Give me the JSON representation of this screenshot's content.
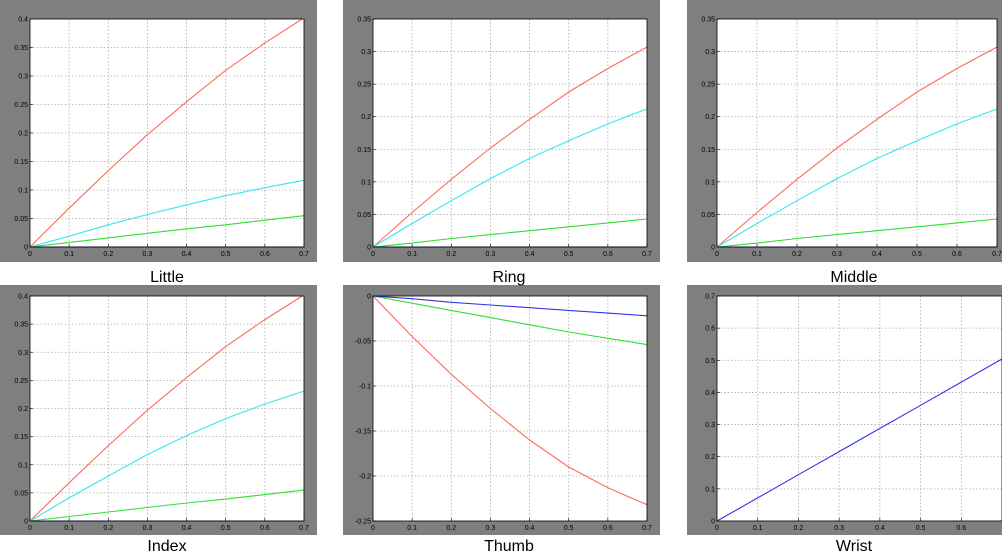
{
  "chart_data": [
    {
      "type": "line",
      "title": "Little",
      "xlim": [
        0,
        0.7
      ],
      "ylim": [
        0,
        0.4
      ],
      "x_ticks": [
        "0",
        "0.1",
        "0.2",
        "0.3",
        "0.4",
        "0.5",
        "0.6",
        "0.7"
      ],
      "y_ticks": [
        "0",
        "0.05",
        "0.1",
        "0.15",
        "0.2",
        "0.25",
        "0.3",
        "0.35",
        "0.4"
      ],
      "grid": true,
      "x": [
        0,
        0.1,
        0.2,
        0.3,
        0.4,
        0.5,
        0.6,
        0.7
      ],
      "series": [
        {
          "color": "#ff6a5c",
          "values": [
            0,
            0.068,
            0.134,
            0.197,
            0.255,
            0.31,
            0.358,
            0.402
          ]
        },
        {
          "color": "#33e8ee",
          "values": [
            0,
            0.019,
            0.039,
            0.057,
            0.074,
            0.09,
            0.104,
            0.117
          ]
        },
        {
          "color": "#33dd33",
          "values": [
            0,
            0.008,
            0.016,
            0.024,
            0.032,
            0.039,
            0.047,
            0.055
          ]
        },
        {
          "color": "#3333ee",
          "values": [
            0,
            0,
            0,
            0,
            0,
            0,
            0,
            0
          ]
        }
      ]
    },
    {
      "type": "line",
      "title": "Ring",
      "xlim": [
        0,
        0.7
      ],
      "ylim": [
        0,
        0.35
      ],
      "x_ticks": [
        "0",
        "0.1",
        "0.2",
        "0.3",
        "0.4",
        "0.5",
        "0.6",
        "0.7"
      ],
      "y_ticks": [
        "0",
        "0.05",
        "0.1",
        "0.15",
        "0.2",
        "0.25",
        "0.3",
        "0.35"
      ],
      "grid": true,
      "x": [
        0,
        0.1,
        0.2,
        0.3,
        0.4,
        0.5,
        0.6,
        0.7
      ],
      "series": [
        {
          "color": "#ff6a5c",
          "values": [
            0,
            0.053,
            0.104,
            0.152,
            0.196,
            0.238,
            0.274,
            0.307
          ]
        },
        {
          "color": "#33e8ee",
          "values": [
            0,
            0.036,
            0.071,
            0.105,
            0.136,
            0.163,
            0.189,
            0.212
          ]
        },
        {
          "color": "#33dd33",
          "values": [
            0,
            0.006,
            0.013,
            0.019,
            0.025,
            0.031,
            0.037,
            0.043
          ]
        },
        {
          "color": "#3333ee",
          "values": [
            0,
            0,
            0,
            0,
            0,
            0,
            0,
            0
          ]
        }
      ]
    },
    {
      "type": "line",
      "title": "Middle",
      "xlim": [
        0,
        0.7
      ],
      "ylim": [
        0,
        0.35
      ],
      "x_ticks": [
        "0",
        "0.1",
        "0.2",
        "0.3",
        "0.4",
        "0.5",
        "0.6",
        "0.7"
      ],
      "y_ticks": [
        "0",
        "0.05",
        "0.1",
        "0.15",
        "0.2",
        "0.25",
        "0.3",
        "0.35"
      ],
      "grid": true,
      "x": [
        0,
        0.1,
        0.2,
        0.3,
        0.4,
        0.5,
        0.6,
        0.7
      ],
      "series": [
        {
          "color": "#ff6a5c",
          "values": [
            0,
            0.053,
            0.104,
            0.152,
            0.196,
            0.238,
            0.274,
            0.307
          ]
        },
        {
          "color": "#33e8ee",
          "values": [
            0,
            0.036,
            0.071,
            0.105,
            0.136,
            0.163,
            0.189,
            0.212
          ]
        },
        {
          "color": "#33dd33",
          "values": [
            0,
            0.006,
            0.013,
            0.019,
            0.025,
            0.031,
            0.037,
            0.043
          ]
        },
        {
          "color": "#3333ee",
          "values": [
            0,
            0,
            0,
            0,
            0,
            0,
            0,
            0
          ]
        }
      ]
    },
    {
      "type": "line",
      "title": "Index",
      "xlim": [
        0,
        0.7
      ],
      "ylim": [
        0,
        0.4
      ],
      "x_ticks": [
        "0",
        "0.1",
        "0.2",
        "0.3",
        "0.4",
        "0.5",
        "0.6",
        "0.7"
      ],
      "y_ticks": [
        "0",
        "0.05",
        "0.1",
        "0.15",
        "0.2",
        "0.25",
        "0.3",
        "0.35",
        "0.4"
      ],
      "grid": true,
      "x": [
        0,
        0.1,
        0.2,
        0.3,
        0.4,
        0.5,
        0.6,
        0.7
      ],
      "series": [
        {
          "color": "#ff6a5c",
          "values": [
            0,
            0.068,
            0.134,
            0.197,
            0.255,
            0.31,
            0.358,
            0.402
          ]
        },
        {
          "color": "#33e8ee",
          "values": [
            0,
            0.041,
            0.08,
            0.118,
            0.152,
            0.182,
            0.208,
            0.231
          ]
        },
        {
          "color": "#33dd33",
          "values": [
            0,
            0.008,
            0.016,
            0.024,
            0.032,
            0.039,
            0.047,
            0.055
          ]
        },
        {
          "color": "#3333ee",
          "values": [
            0,
            0,
            0,
            0,
            0,
            0,
            0,
            0
          ]
        }
      ]
    },
    {
      "type": "line",
      "title": "Thumb",
      "xlim": [
        0,
        0.7
      ],
      "ylim": [
        -0.25,
        0
      ],
      "x_ticks": [
        "0",
        "0.1",
        "0.2",
        "0.3",
        "0.4",
        "0.5",
        "0.6",
        "0.7"
      ],
      "y_ticks": [
        "-0.25",
        "-0.2",
        "-0.15",
        "-0.1",
        "-0.05",
        "0"
      ],
      "grid": true,
      "x": [
        0,
        0.1,
        0.2,
        0.3,
        0.4,
        0.5,
        0.6,
        0.7
      ],
      "series": [
        {
          "color": "#ff6a5c",
          "values": [
            0,
            -0.045,
            -0.087,
            -0.125,
            -0.16,
            -0.19,
            -0.213,
            -0.232
          ]
        },
        {
          "color": "#33dd33",
          "values": [
            0,
            -0.008,
            -0.016,
            -0.024,
            -0.032,
            -0.04,
            -0.047,
            -0.054
          ]
        },
        {
          "color": "#3333ee",
          "values": [
            0,
            -0.003,
            -0.007,
            -0.01,
            -0.013,
            -0.016,
            -0.019,
            -0.022
          ]
        }
      ]
    },
    {
      "type": "line",
      "title": "Wrist",
      "xlim": [
        0,
        0.7
      ],
      "ylim": [
        0,
        0.7
      ],
      "x_ticks": [
        "0",
        "0.1",
        "0.2",
        "0.3",
        "0.4",
        "0.5",
        "0.6"
      ],
      "y_ticks": [
        "0",
        "0.1",
        "0.2",
        "0.3",
        "0.4",
        "0.5",
        "0.6",
        "0.7"
      ],
      "grid": true,
      "x": [
        0,
        0.1,
        0.2,
        0.3,
        0.4,
        0.5,
        0.6,
        0.7
      ],
      "series": [
        {
          "color": "#3333ee",
          "values": [
            0,
            0.072,
            0.144,
            0.216,
            0.288,
            0.36,
            0.432,
            0.504
          ]
        },
        {
          "color": "#ff6a5c",
          "values": [
            0,
            0,
            0,
            0,
            0,
            0,
            0,
            0
          ]
        }
      ]
    }
  ],
  "colors": {
    "frame": "#7f7f7f",
    "plot_bg": "#ffffff",
    "grid": "#aaaaaa"
  }
}
